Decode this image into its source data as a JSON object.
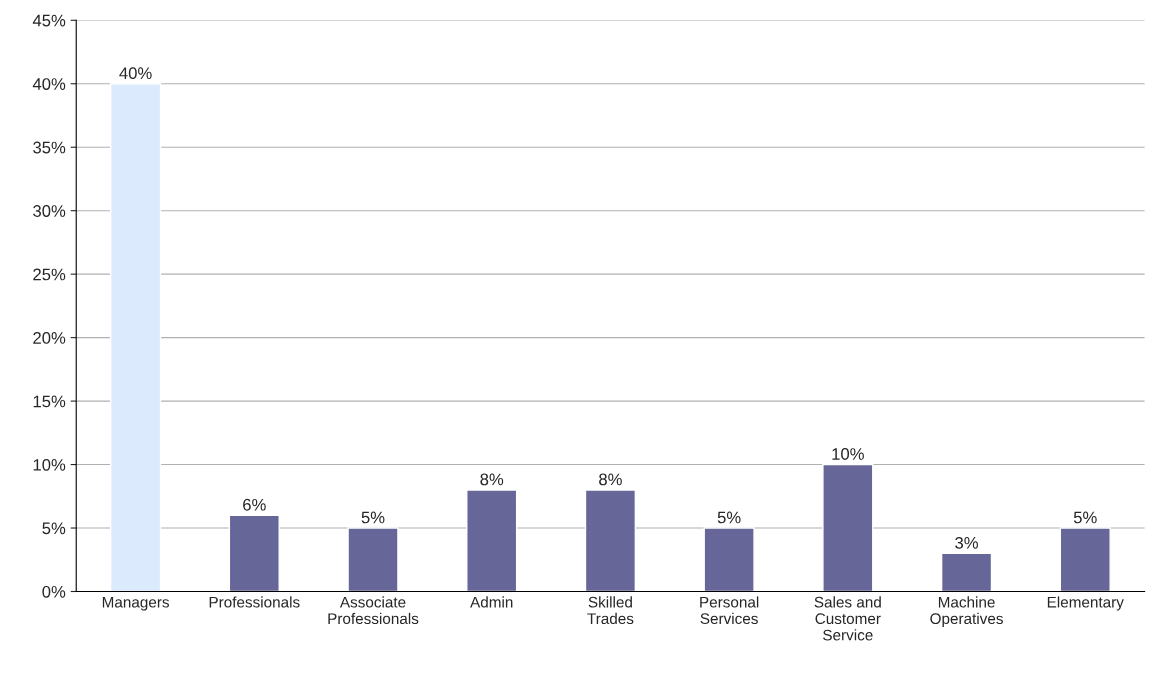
{
  "chart_data": {
    "type": "bar",
    "categories": [
      "Managers",
      "Professionals",
      "Associate Professionals",
      "Admin",
      "Skilled Trades",
      "Personal Services",
      "Sales and Customer Service",
      "Machine Operatives",
      "Elementary"
    ],
    "values": [
      40,
      6,
      5,
      8,
      8,
      5,
      10,
      3,
      5
    ],
    "colors": [
      "#dbeafc",
      "#666699",
      "#666699",
      "#666699",
      "#666699",
      "#666699",
      "#666699",
      "#666699",
      "#666699"
    ],
    "value_labels": [
      "40%",
      "6%",
      "5%",
      "8%",
      "8%",
      "5%",
      "10%",
      "3%",
      "5%"
    ],
    "ylim": [
      0,
      45
    ],
    "yticks": [
      {
        "value": 0,
        "label": "0%"
      },
      {
        "value": 5,
        "label": "5%"
      },
      {
        "value": 10,
        "label": "10%"
      },
      {
        "value": 15,
        "label": "15%"
      },
      {
        "value": 20,
        "label": "20%"
      },
      {
        "value": 25,
        "label": "25%"
      },
      {
        "value": 30,
        "label": "30%"
      },
      {
        "value": 35,
        "label": "35%"
      },
      {
        "value": 40,
        "label": "40%"
      },
      {
        "value": 45,
        "label": "45%"
      }
    ],
    "grid": "y",
    "legend": false
  }
}
